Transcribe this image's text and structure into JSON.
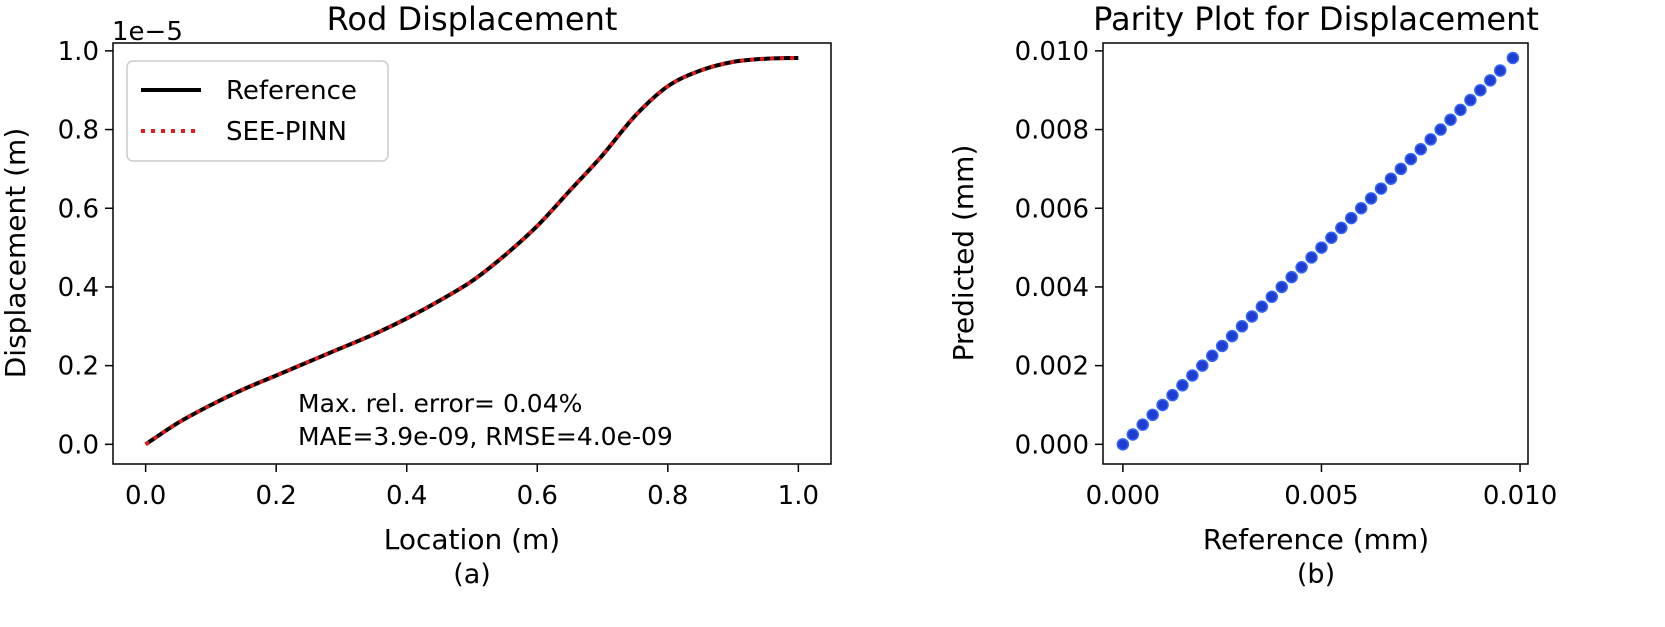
{
  "chart_data": [
    {
      "type": "line",
      "title": "Rod Displacement",
      "xlabel": "Location (m)",
      "ylabel": "Displacement (m)",
      "y_offset_label": "1e−5",
      "subcaption": "(a)",
      "xlim": [
        -0.05,
        1.05
      ],
      "ylim": [
        -0.05,
        1.02
      ],
      "xticks": [
        0.0,
        0.2,
        0.4,
        0.6,
        0.8,
        1.0
      ],
      "xtick_labels": [
        "0.0",
        "0.2",
        "0.4",
        "0.6",
        "0.8",
        "1.0"
      ],
      "yticks": [
        0.0,
        0.2,
        0.4,
        0.6,
        0.8,
        1.0
      ],
      "ytick_labels": [
        "0.0",
        "0.2",
        "0.4",
        "0.6",
        "0.8",
        "1.0"
      ],
      "legend_position": "top-left",
      "series": [
        {
          "name": "Reference",
          "color": "#000000",
          "style": "solid",
          "x": [
            0.0,
            0.05,
            0.1,
            0.15,
            0.2,
            0.25,
            0.3,
            0.35,
            0.4,
            0.45,
            0.5,
            0.55,
            0.6,
            0.65,
            0.7,
            0.75,
            0.8,
            0.85,
            0.9,
            0.95,
            1.0
          ],
          "y": [
            0.0,
            0.055,
            0.1,
            0.14,
            0.175,
            0.21,
            0.245,
            0.28,
            0.32,
            0.365,
            0.415,
            0.48,
            0.555,
            0.645,
            0.735,
            0.835,
            0.91,
            0.95,
            0.972,
            0.98,
            0.982
          ]
        },
        {
          "name": "SEE-PINN",
          "color": "#e41a1c",
          "style": "dotted",
          "x": [
            0.0,
            0.05,
            0.1,
            0.15,
            0.2,
            0.25,
            0.3,
            0.35,
            0.4,
            0.45,
            0.5,
            0.55,
            0.6,
            0.65,
            0.7,
            0.75,
            0.8,
            0.85,
            0.9,
            0.95,
            1.0
          ],
          "y": [
            0.0,
            0.055,
            0.1,
            0.14,
            0.175,
            0.21,
            0.245,
            0.28,
            0.32,
            0.365,
            0.415,
            0.48,
            0.555,
            0.645,
            0.735,
            0.835,
            0.91,
            0.95,
            0.972,
            0.98,
            0.982
          ]
        }
      ],
      "annotations": [
        "Max. rel. error= 0.04%",
        "MAE=3.9e-09, RMSE=4.0e-09"
      ]
    },
    {
      "type": "scatter",
      "title": "Parity Plot for Displacement",
      "xlabel": "Reference (mm)",
      "ylabel": "Predicted (mm)",
      "subcaption": "(b)",
      "xlim": [
        -0.0005,
        0.0102
      ],
      "ylim": [
        -0.0005,
        0.0102
      ],
      "xticks": [
        0.0,
        0.005,
        0.01
      ],
      "xtick_labels": [
        "0.000",
        "0.005",
        "0.010"
      ],
      "yticks": [
        0.0,
        0.002,
        0.004,
        0.006,
        0.008,
        0.01
      ],
      "ytick_labels": [
        "0.000",
        "0.002",
        "0.004",
        "0.006",
        "0.008",
        "0.010"
      ],
      "marker_color": "#1f3ecf",
      "marker_edge_color": "#3366ff",
      "series": [
        {
          "x": [
            0.0,
            0.00025,
            0.0005,
            0.00075,
            0.001,
            0.00125,
            0.0015,
            0.00175,
            0.002,
            0.00225,
            0.0025,
            0.00275,
            0.003,
            0.00325,
            0.0035,
            0.00375,
            0.004,
            0.00425,
            0.0045,
            0.00475,
            0.005,
            0.00525,
            0.0055,
            0.00575,
            0.006,
            0.00625,
            0.0065,
            0.00675,
            0.007,
            0.00725,
            0.0075,
            0.00775,
            0.008,
            0.00825,
            0.0085,
            0.00875,
            0.009,
            0.00925,
            0.0095,
            0.00982
          ],
          "y": [
            0.0,
            0.00025,
            0.0005,
            0.00075,
            0.001,
            0.00125,
            0.0015,
            0.00175,
            0.002,
            0.00225,
            0.0025,
            0.00275,
            0.003,
            0.00325,
            0.0035,
            0.00375,
            0.004,
            0.00425,
            0.0045,
            0.00475,
            0.005,
            0.00525,
            0.0055,
            0.00575,
            0.006,
            0.00625,
            0.0065,
            0.00675,
            0.007,
            0.00725,
            0.0075,
            0.00775,
            0.008,
            0.00825,
            0.0085,
            0.00875,
            0.009,
            0.00925,
            0.0095,
            0.00982
          ]
        }
      ]
    }
  ]
}
